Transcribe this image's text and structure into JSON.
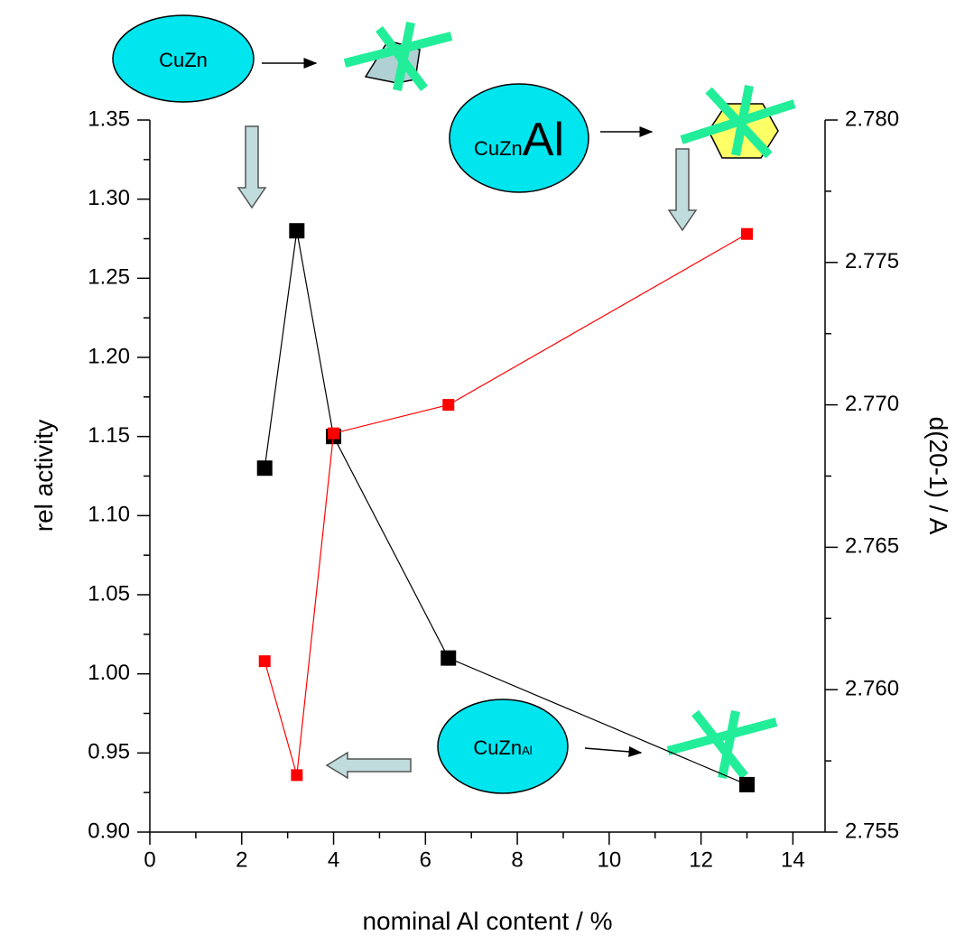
{
  "chart_data": {
    "type": "line",
    "x_label": "nominal Al content / %",
    "y_label": "rel activity",
    "y2_label": "d(20-1) / A",
    "xlim": [
      0,
      14.7
    ],
    "xticks": [
      0,
      2,
      4,
      6,
      8,
      10,
      12,
      14
    ],
    "ylim": [
      0.9,
      1.35
    ],
    "yticks": [
      {
        "value": 0.9,
        "label": "0.90"
      },
      0.95,
      {
        "value": 1.0,
        "label": "1.00"
      },
      1.05,
      {
        "value": 1.1,
        "label": "1.10"
      },
      1.15,
      {
        "value": 1.2,
        "label": "1.20"
      },
      1.25,
      {
        "value": 1.3,
        "label": "1.30"
      },
      1.35
    ],
    "y2lim": [
      2.755,
      2.78
    ],
    "y2ticks": [
      2.755,
      {
        "value": 2.76,
        "label": "2.760"
      },
      2.765,
      {
        "value": 2.77,
        "label": "2.770"
      },
      2.775,
      {
        "value": 2.78,
        "label": "2.780"
      }
    ],
    "series": [
      {
        "color": "#000000",
        "axis": "y",
        "x": [
          2.5,
          3.2,
          4,
          6.5,
          13
        ],
        "values": [
          1.13,
          1.28,
          1.15,
          1.01,
          0.93
        ]
      },
      {
        "color": "#ff0000",
        "axis": "y2",
        "x": [
          2.5,
          3.2,
          4,
          6.5,
          13
        ],
        "values": [
          2.761,
          2.757,
          2.769,
          2.77,
          2.776
        ]
      }
    ],
    "annotations": [
      "CuZn",
      "CuZn",
      "Al",
      "CuZn",
      "Al"
    ]
  }
}
